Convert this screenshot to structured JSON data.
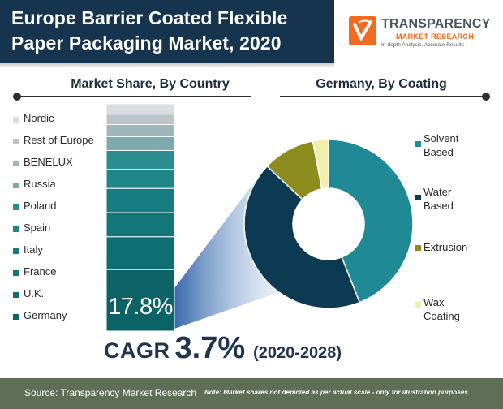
{
  "header": {
    "title_line1": "Europe Barrier Coated Flexible",
    "title_line2": "Paper Packaging Market, 2020"
  },
  "logo": {
    "name": "TRANSPARENCY",
    "sub": "MARKET RESEARCH",
    "tagline": "In-depth Analysis. Accurate Results"
  },
  "chart_data": [
    {
      "type": "bar",
      "title": "Market Share, By Country",
      "categories": [
        "Nordic",
        "Rest of Europe",
        "BENELUX",
        "Russia",
        "Poland",
        "Spain",
        "Italy",
        "France",
        "U.K.",
        "Germany"
      ],
      "values": [
        3,
        3,
        3.5,
        4,
        5.5,
        5.5,
        7,
        7,
        9.5,
        17.8
      ],
      "highlight": {
        "category": "Germany",
        "label": "17.8%"
      },
      "stacked": true,
      "orientation": "vertical",
      "colors": [
        "#d9dee0",
        "#b9c5c8",
        "#9fb7ba",
        "#7ea9ad",
        "#2b8d8f",
        "#1f8587",
        "#177c7f",
        "#13777a",
        "#0f6e71",
        "#0b6366"
      ]
    },
    {
      "type": "pie",
      "title": "Germany, By Coating",
      "labels": [
        "Solvent Based",
        "Water Based",
        "Extrusion",
        "Wax Coating"
      ],
      "values": [
        44,
        43,
        10,
        3
      ],
      "colors": [
        "#1f8a96",
        "#0c3a52",
        "#8d8d1f",
        "#f2eeae"
      ]
    }
  ],
  "country_legend_colors": [
    "#d9dee0",
    "#b9c5c8",
    "#9fb7ba",
    "#7ea9ad",
    "#2b8d8f",
    "#1f8587",
    "#177c7f",
    "#13777a",
    "#0f6e71",
    "#0b6366"
  ],
  "coating_legend": [
    {
      "line1": "Solvent",
      "line2": "Based"
    },
    {
      "line1": "Water",
      "line2": "Based"
    },
    {
      "line1": "Extrusion",
      "line2": ""
    },
    {
      "line1": "Wax",
      "line2": "Coating"
    }
  ],
  "cagr": {
    "label": "CAGR",
    "value": "3.7%",
    "period": "(2020-2028)"
  },
  "footer": {
    "source": "Source: Transparency Market Research",
    "note": "Note: Market shares not depicted as per actual scale - only for illustration purposes"
  }
}
